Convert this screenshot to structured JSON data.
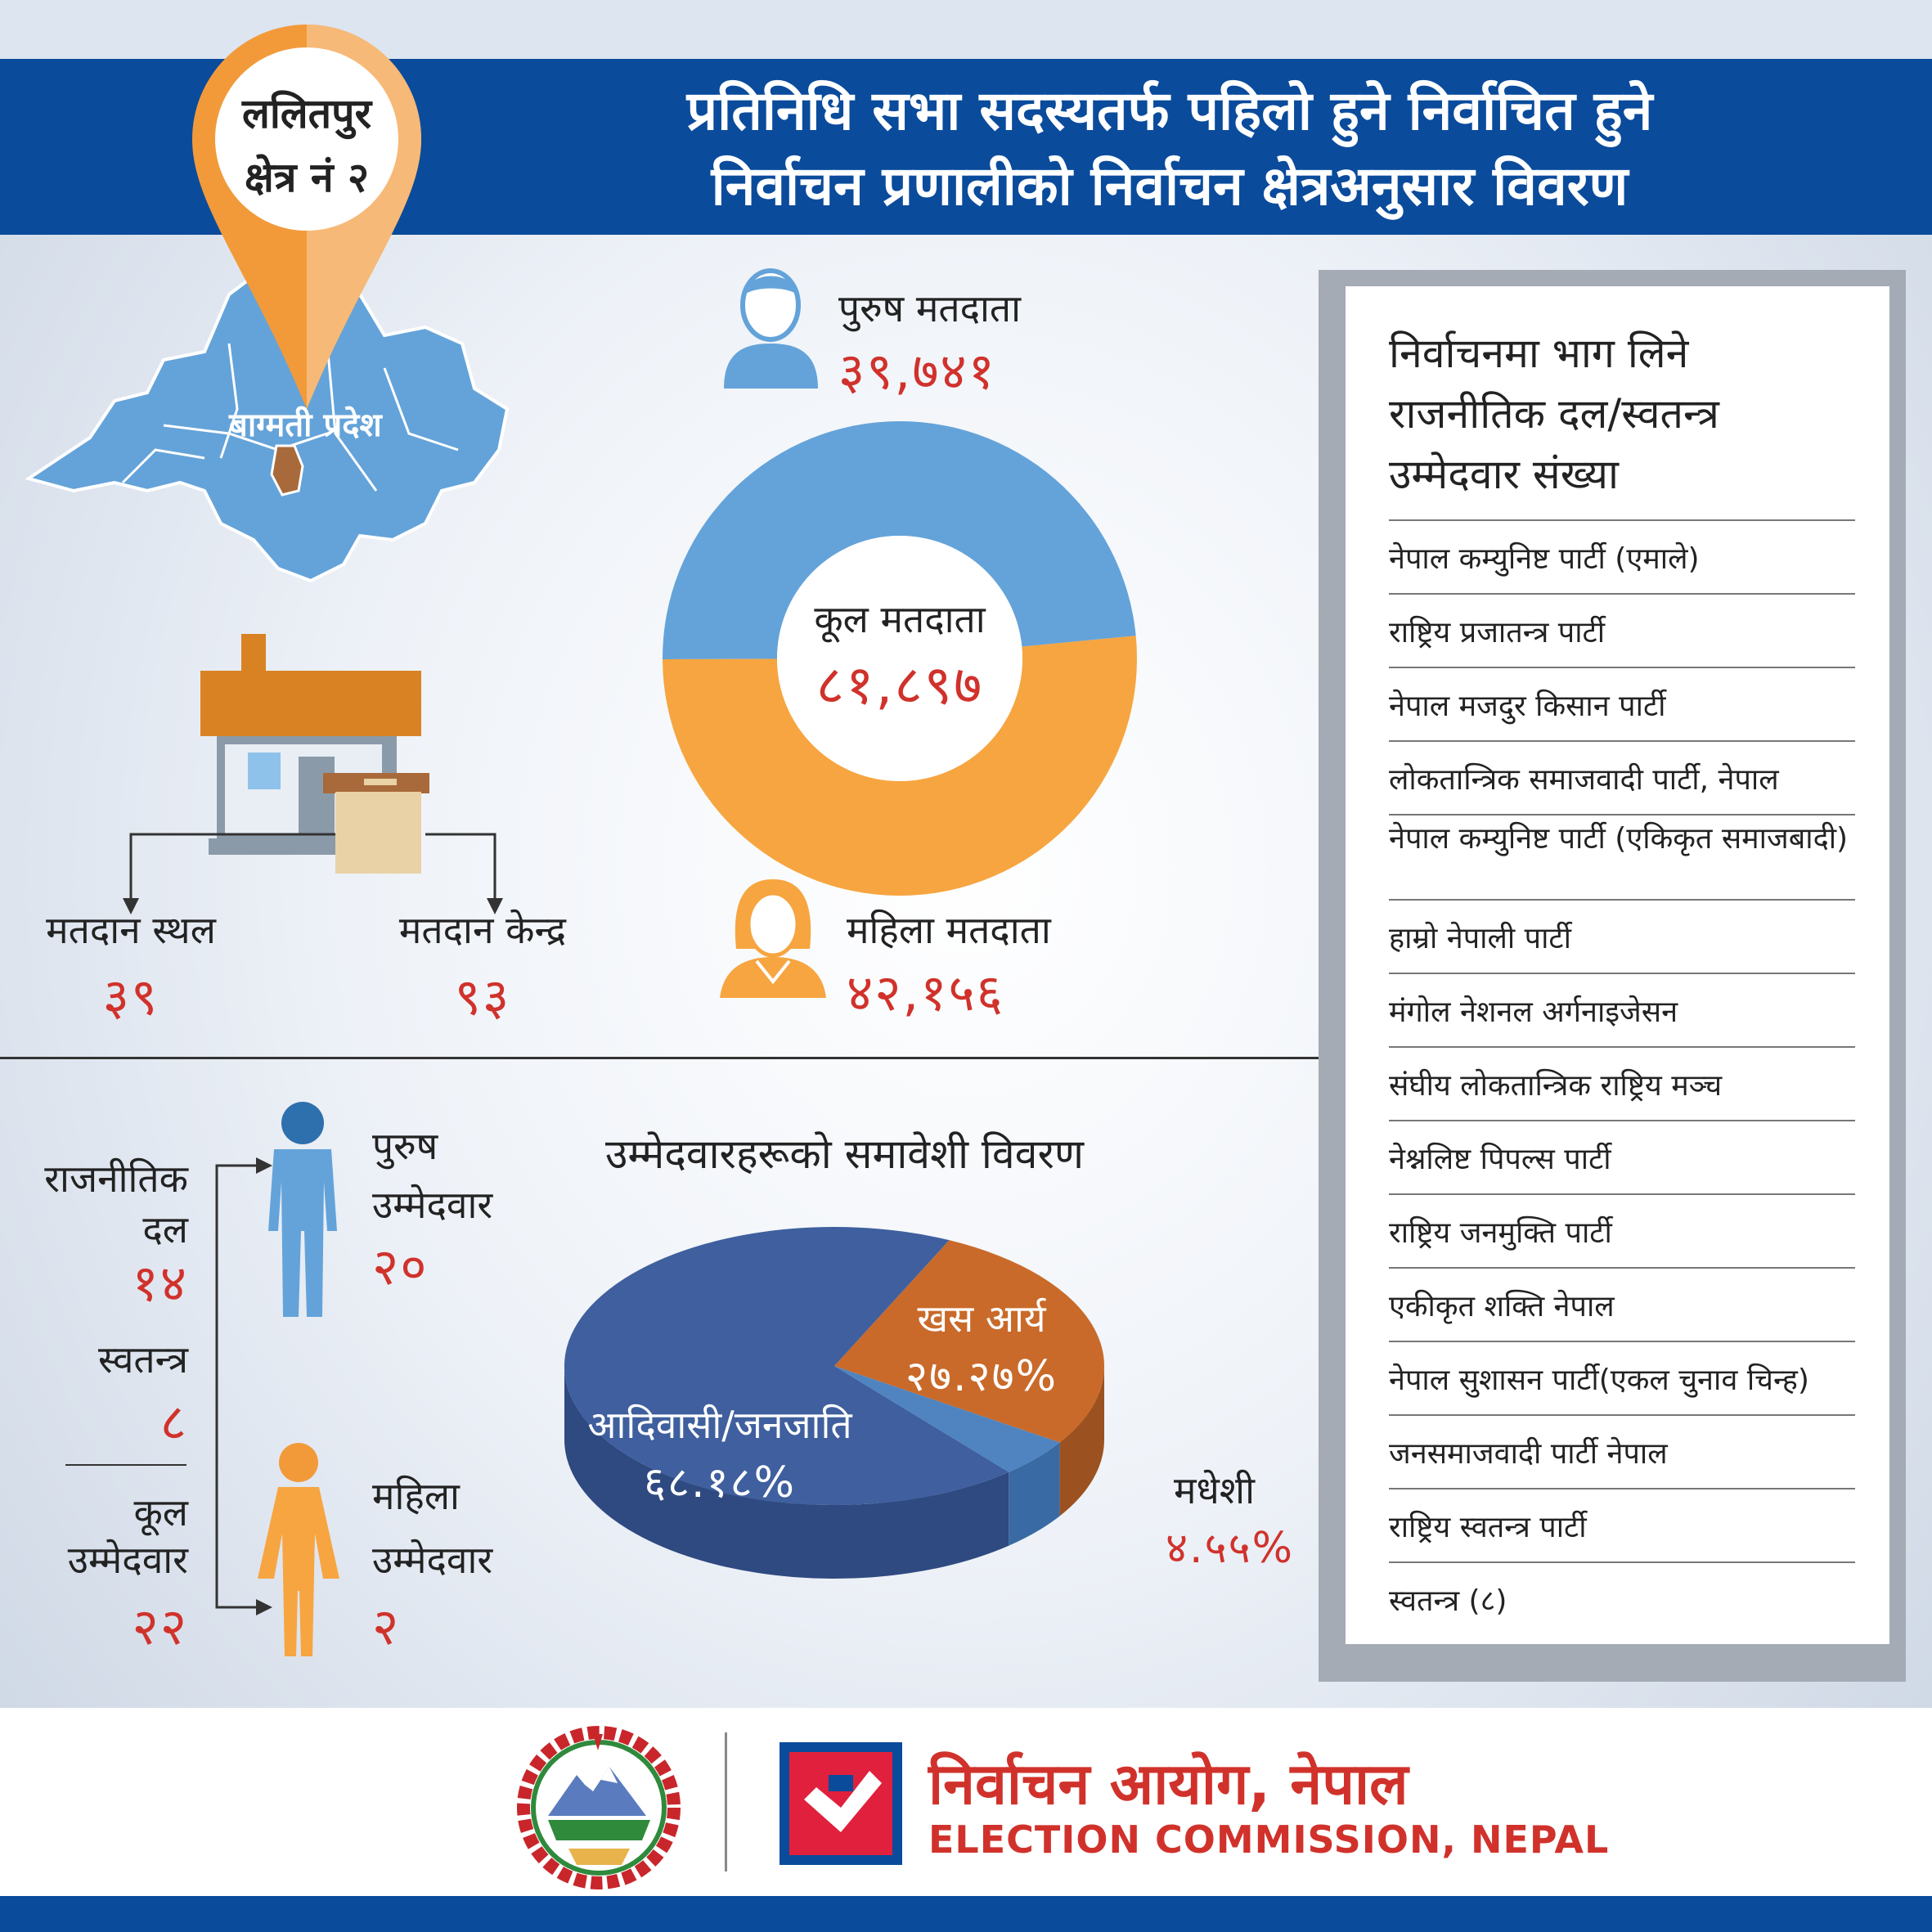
{
  "header": {
    "title_line1": "प्रतिनिधि सभा सदस्यतर्फ पहिलो हुने निर्वाचित हुने",
    "title_line2": "निर्वाचन प्रणालीको निर्वाचन क्षेत्रअनुसार विवरण"
  },
  "location": {
    "district": "ललितपुर",
    "constituency": "क्षेत्र नं २",
    "province": "बाग्मती प्रदेश"
  },
  "voters": {
    "male_label": "पुरुष मतदाता",
    "male_count": "३९,७४१",
    "female_label": "महिला मतदाता",
    "female_count": "४२,१५६",
    "total_label": "कूल मतदाता",
    "total_count": "८१,८९७",
    "colors": {
      "male": "#64a3d9",
      "female": "#f7a540"
    }
  },
  "polling": {
    "place_label": "मतदान स्थल",
    "place_count": "३९",
    "center_label": "मतदान केन्द्र",
    "center_count": "९३"
  },
  "candidates": {
    "party_label_1": "राजनीतिक",
    "party_label_2": "दल",
    "party_count": "१४",
    "independent_label": "स्वतन्त्र",
    "independent_count": "८",
    "total_label_1": "कूल",
    "total_label_2": "उम्मेदवार",
    "total_count": "२२",
    "male_label_1": "पुरुष",
    "male_label_2": "उम्मेदवार",
    "male_count": "२०",
    "female_label_1": "महिला",
    "female_label_2": "उम्मेदवार",
    "female_count": "२"
  },
  "inclusion_title": "उम्मेदवारहरूको समावेशी विवरण",
  "chart_data": [
    {
      "type": "pie",
      "categories": [
        "पुरुष मतदाता",
        "महिला मतदाता"
      ],
      "values": [
        39741,
        42156
      ],
      "colors": [
        "#64a3d9",
        "#f7a540"
      ]
    },
    {
      "type": "pie",
      "title": "उम्मेदवारहरूको समावेशी विवरण",
      "categories": [
        "आदिवासी/जनजाति",
        "खस आर्य",
        "मधेशी"
      ],
      "value_labels": [
        "६८.१८%",
        "२७.२७%",
        "४.५५%"
      ],
      "values": [
        68.18,
        27.27,
        4.55
      ],
      "colors": [
        "#3f5f9e",
        "#c96a2a",
        "#4f84c0"
      ]
    }
  ],
  "pie_labels": {
    "adivasi": "आदिवासी/जनजाति",
    "adivasi_pct": "६८.१८%",
    "khas": "खस आर्य",
    "khas_pct": "२७.२७%",
    "madhesi": "मधेशी",
    "madhesi_pct": "४.५५%"
  },
  "parties_panel": {
    "heading_line1": "निर्वाचनमा भाग लिने",
    "heading_line2": "राजनीतिक दल/स्वतन्त्र",
    "heading_line3": "उम्मेदवार संख्या",
    "parties": [
      "नेपाल कम्युनिष्ट पार्टी (एमाले)",
      "राष्ट्रिय प्रजातन्त्र पार्टी",
      "नेपाल मजदुर किसान पार्टी",
      "लोकतान्त्रिक समाजवादी पार्टी, नेपाल",
      "नेपाल कम्युनिष्ट पार्टी (एकिकृत समाजबादी)",
      "हाम्रो नेपाली पार्टी",
      "मंगोल नेशनल अर्गनाइजेसन",
      "संघीय लोकतान्त्रिक राष्ट्रिय मञ्च",
      "नेश्नलिष्ट पिपल्स पार्टी",
      "राष्ट्रिय जनमुक्ति पार्टी",
      "एकीकृत शक्ति नेपाल",
      "नेपाल सुशासन पार्टी(एकल चुनाव चिन्ह)",
      "जनसमाजवादी पार्टी नेपाल",
      "राष्ट्रिय स्वतन्त्र पार्टी",
      "स्वतन्त्र (८)"
    ]
  },
  "footer": {
    "ec_nepali": "निर्वाचन आयोग, नेपाल",
    "ec_english": "ELECTION COMMISSION, NEPAL"
  }
}
